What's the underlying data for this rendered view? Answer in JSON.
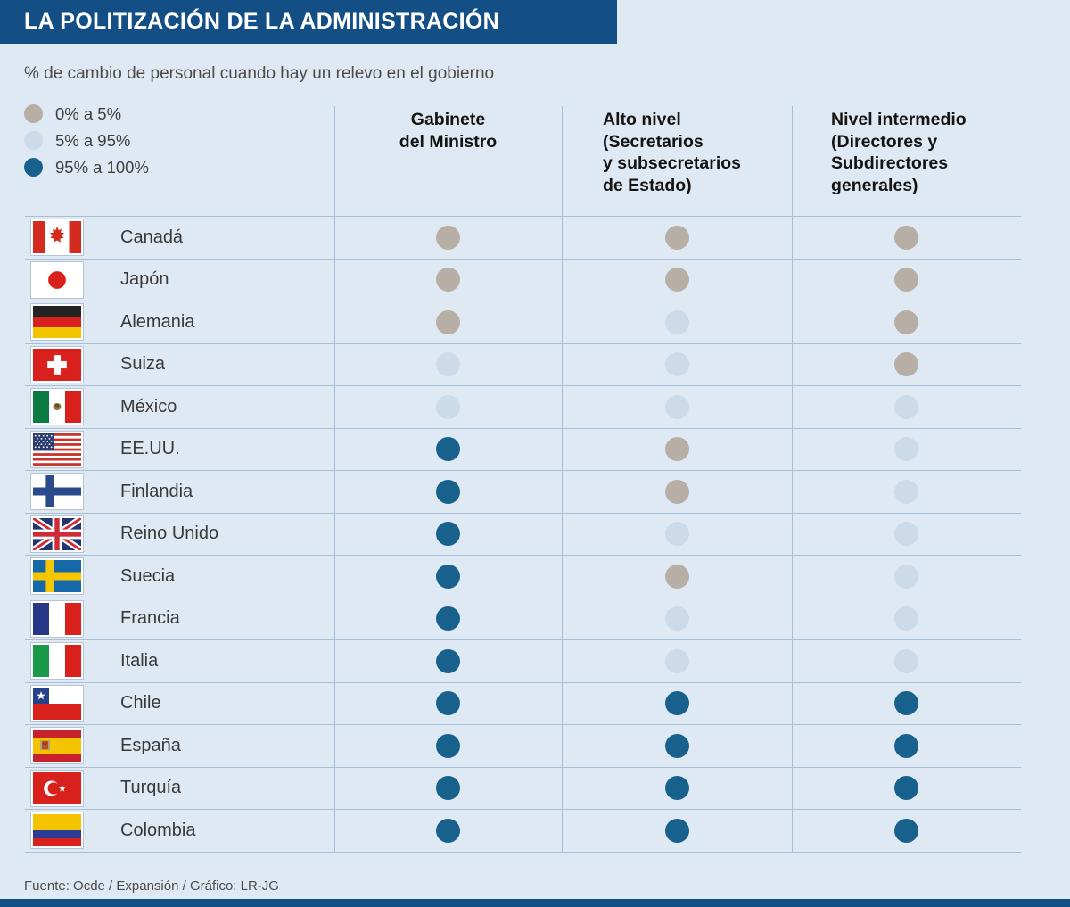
{
  "title": "LA POLITIZACIÓN DE LA ADMINISTRACIÓN",
  "subtitle": "% de cambio de personal cuando hay un relevo en el gobierno",
  "footer": "Fuente: Ocde / Expansión / Gráfico: LR-JG",
  "colors": {
    "header_bar": "#134e85",
    "background": "#dfe9f3",
    "grid_line": "#a7bfd7",
    "dot_low": "#b7aea6",
    "dot_mid": "#ccdae9",
    "dot_high": "#17618c"
  },
  "legend": [
    {
      "label": "0% a 5%",
      "level": "low"
    },
    {
      "label": "5% a 95%",
      "level": "mid"
    },
    {
      "label": "95% a 100%",
      "level": "high"
    }
  ],
  "chart_data": {
    "type": "table",
    "title": "LA POLITIZACIÓN DE LA ADMINISTRACIÓN",
    "subtitle": "% de cambio de personal cuando hay un relevo en el gobierno",
    "legend_levels": {
      "low": "0% a 5%",
      "mid": "5% a 95%",
      "high": "95% a 100%"
    },
    "legend_position": "top-left",
    "columns": [
      "Gabinete\ndel Ministro",
      "Alto nivel\n(Secretarios\ny subsecretarios\nde Estado)",
      "Nivel intermedio\n(Directores y\nSubdirectores\ngenerales)"
    ],
    "rows": [
      {
        "country": "Canadá",
        "flag": "canada",
        "values": [
          "low",
          "low",
          "low"
        ]
      },
      {
        "country": "Japón",
        "flag": "japan",
        "values": [
          "low",
          "low",
          "low"
        ]
      },
      {
        "country": "Alemania",
        "flag": "germany",
        "values": [
          "low",
          "mid",
          "low"
        ]
      },
      {
        "country": "Suiza",
        "flag": "switzerland",
        "values": [
          "mid",
          "mid",
          "low"
        ]
      },
      {
        "country": "México",
        "flag": "mexico",
        "values": [
          "mid",
          "mid",
          "mid"
        ]
      },
      {
        "country": "EE.UU.",
        "flag": "usa",
        "values": [
          "high",
          "low",
          "mid"
        ]
      },
      {
        "country": "Finlandia",
        "flag": "finland",
        "values": [
          "high",
          "low",
          "mid"
        ]
      },
      {
        "country": "Reino Unido",
        "flag": "uk",
        "values": [
          "high",
          "mid",
          "mid"
        ]
      },
      {
        "country": "Suecia",
        "flag": "sweden",
        "values": [
          "high",
          "low",
          "mid"
        ]
      },
      {
        "country": "Francia",
        "flag": "france",
        "values": [
          "high",
          "mid",
          "mid"
        ]
      },
      {
        "country": "Italia",
        "flag": "italy",
        "values": [
          "high",
          "mid",
          "mid"
        ]
      },
      {
        "country": "Chile",
        "flag": "chile",
        "values": [
          "high",
          "high",
          "high"
        ]
      },
      {
        "country": "España",
        "flag": "spain",
        "values": [
          "high",
          "high",
          "high"
        ]
      },
      {
        "country": "Turquía",
        "flag": "turkey",
        "values": [
          "high",
          "high",
          "high"
        ]
      },
      {
        "country": "Colombia",
        "flag": "colombia",
        "values": [
          "high",
          "high",
          "high"
        ]
      }
    ]
  }
}
